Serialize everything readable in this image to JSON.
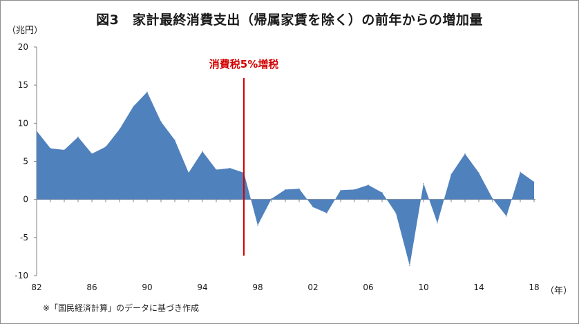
{
  "chart_data": {
    "type": "area",
    "title": "図3　家計最終消費支出（帰属家賃を除く）の前年からの増加量",
    "ylabel": "（兆円）",
    "xlabel": "（年）",
    "ylim": [
      -10,
      20
    ],
    "yticks": [
      "20",
      "15",
      "10",
      "5",
      "0",
      "-5",
      "-10"
    ],
    "xtick_labels": [
      "82",
      "86",
      "90",
      "94",
      "98",
      "02",
      "06",
      "10",
      "14",
      "18"
    ],
    "x": [
      1982,
      1983,
      1984,
      1985,
      1986,
      1987,
      1988,
      1989,
      1990,
      1991,
      1992,
      1993,
      1994,
      1995,
      1996,
      1997,
      1998,
      1999,
      2000,
      2001,
      2002,
      2003,
      2004,
      2005,
      2006,
      2007,
      2008,
      2009,
      2010,
      2011,
      2012,
      2013,
      2014,
      2015,
      2016,
      2017,
      2018
    ],
    "series": [
      {
        "values": [
          9.0,
          6.7,
          6.5,
          8.2,
          6.0,
          6.9,
          9.2,
          12.2,
          14.1,
          10.2,
          7.8,
          3.5,
          6.3,
          3.9,
          4.1,
          3.5,
          -3.4,
          0.1,
          1.3,
          1.4,
          -1.0,
          -1.8,
          1.2,
          1.3,
          1.9,
          0.9,
          -1.8,
          -8.7,
          2.1,
          -3.1,
          3.3,
          6.0,
          3.5,
          0.1,
          -2.2,
          3.6,
          2.3
        ],
        "color": "#4f81bd"
      }
    ],
    "annotations": [
      {
        "x": 1997,
        "label": "消費税5%増税",
        "color": "#d40000"
      }
    ],
    "grid": false,
    "legend": "none",
    "source_note": "※「国民経済計算」のデータに基づき作成"
  }
}
